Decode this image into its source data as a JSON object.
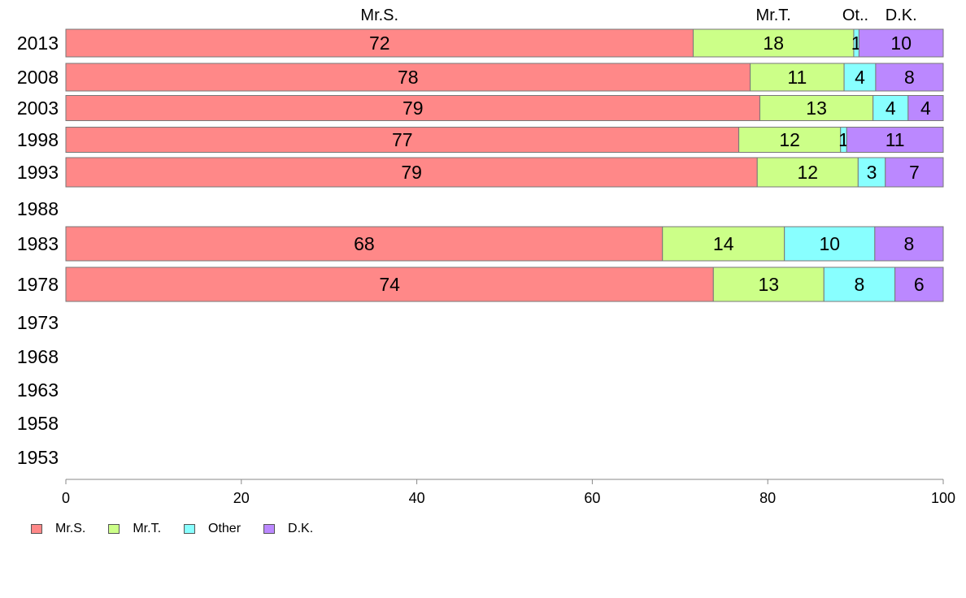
{
  "chart_data": {
    "type": "bar",
    "orientation": "horizontal",
    "stacked": true,
    "categories": [
      "2013",
      "2008",
      "2003",
      "1998",
      "1993",
      "1988",
      "1983",
      "1978",
      "1973",
      "1968",
      "1963",
      "1958",
      "1953"
    ],
    "series": [
      {
        "name": "Mr.S.",
        "color": "#ff8888",
        "values": [
          71.5,
          78.0,
          79.1,
          76.7,
          78.8,
          null,
          68.0,
          73.8,
          null,
          null,
          null,
          null,
          null
        ]
      },
      {
        "name": "Mr.T.",
        "color": "#ccff88",
        "values": [
          18.3,
          10.7,
          12.9,
          11.6,
          11.5,
          null,
          13.9,
          12.6,
          null,
          null,
          null,
          null,
          null
        ]
      },
      {
        "name": "Other",
        "color": "#88ffff",
        "values": [
          0.6,
          3.6,
          4.0,
          0.7,
          3.1,
          null,
          10.3,
          8.1,
          null,
          null,
          null,
          null,
          null
        ]
      },
      {
        "name": "D.K.",
        "color": "#bb88ff",
        "values": [
          9.6,
          7.7,
          4.0,
          11.0,
          6.6,
          null,
          7.8,
          5.5,
          null,
          null,
          null,
          null,
          null
        ]
      }
    ],
    "data_labels": [
      [
        "72",
        "18",
        "1",
        "10"
      ],
      [
        "78",
        "11",
        "4",
        "8"
      ],
      [
        "79",
        "13",
        "4",
        "4"
      ],
      [
        "77",
        "12",
        "1",
        "11"
      ],
      [
        "79",
        "12",
        "3",
        "7"
      ],
      null,
      [
        "68",
        "14",
        "10",
        "8"
      ],
      [
        "74",
        "13",
        "8",
        "6"
      ],
      null,
      null,
      null,
      null,
      null
    ],
    "top_labels": [
      "Mr.S.",
      "Mr.T.",
      "Ot..",
      "D.K."
    ],
    "xlim": [
      0,
      100
    ],
    "xticks": [
      "0",
      "20",
      "40",
      "60",
      "80",
      "100"
    ],
    "grid": false,
    "legend": {
      "position": "bottom-left",
      "labels": [
        "Mr.S.",
        "Mr.T.",
        "Other",
        "D.K."
      ]
    }
  }
}
